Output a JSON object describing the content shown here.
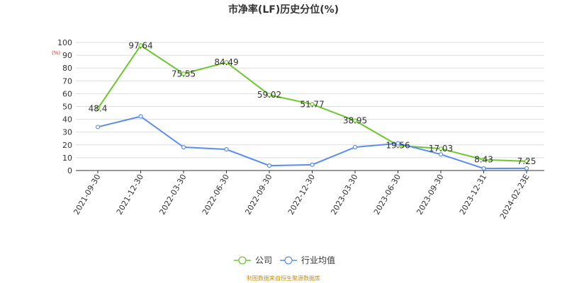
{
  "chart_data": {
    "type": "line",
    "title": "市净率(LF)历史分位(%)",
    "ylabel": "(%)",
    "ylim": [
      0,
      100
    ],
    "yticks": [
      0,
      10,
      20,
      30,
      40,
      50,
      60,
      70,
      80,
      90,
      100
    ],
    "grid": true,
    "legend_position": "bottom-center",
    "categories": [
      "2021-09-30",
      "2021-12-30",
      "2022-03-30",
      "2022-06-30",
      "2022-09-30",
      "2022-12-30",
      "2023-03-30",
      "2023-06-30",
      "2023-09-30",
      "2023-12-31",
      "2024-02-23E"
    ],
    "series": [
      {
        "name": "公司",
        "color": "#6cc72d",
        "values": [
          48.4,
          97.64,
          75.55,
          84.49,
          59.02,
          51.77,
          38.95,
          19.56,
          17.03,
          8.43,
          7.25
        ],
        "labels": [
          "48.4",
          "97.64",
          "75.55",
          "84.49",
          "59.02",
          "51.77",
          "38.95",
          "19.56",
          "17.03",
          "8.43",
          "7.25"
        ]
      },
      {
        "name": "行业均值",
        "color": "#5b8def",
        "values": [
          34,
          42.2,
          18.2,
          16.5,
          3.8,
          4.5,
          18.2,
          21.2,
          12.6,
          1.6,
          1.7
        ]
      }
    ]
  },
  "footer_note": "制图数据来自恒生聚源数据库"
}
